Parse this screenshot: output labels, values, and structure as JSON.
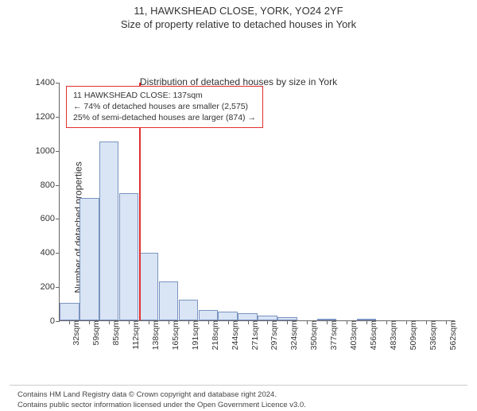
{
  "title_line1": "11, HAWKSHEAD CLOSE, YORK, YO24 2YF",
  "title_line2": "Size of property relative to detached houses in York",
  "chart": {
    "type": "histogram",
    "ylabel": "Number of detached properties",
    "xlabel": "Distribution of detached houses by size in York",
    "ylim_max": 1400,
    "ytick_step": 200,
    "yticks": [
      0,
      200,
      400,
      600,
      800,
      1000,
      1200,
      1400
    ],
    "bar_color": "#d9e4f5",
    "bar_border_color": "#7a94c0",
    "background_color": "#ffffff",
    "vline_color": "#e03030",
    "vline_width": 2,
    "vline_at_category_index": 4,
    "annotation": {
      "border_color": "#e03030",
      "border_width": 1.5,
      "lines": [
        "11 HAWKSHEAD CLOSE: 137sqm",
        "← 74% of detached houses are smaller (2,575)",
        "25% of semi-detached houses are larger (874) →"
      ]
    },
    "categories": [
      "32sqm",
      "59sqm",
      "85sqm",
      "112sqm",
      "138sqm",
      "165sqm",
      "191sqm",
      "218sqm",
      "244sqm",
      "271sqm",
      "297sqm",
      "324sqm",
      "350sqm",
      "377sqm",
      "403sqm",
      "456sqm",
      "483sqm",
      "509sqm",
      "536sqm",
      "562sqm"
    ],
    "values": [
      105,
      720,
      1050,
      745,
      395,
      230,
      120,
      60,
      50,
      40,
      30,
      20,
      0,
      10,
      0,
      10,
      0,
      0,
      0,
      0
    ]
  },
  "footer": {
    "line1": "Contains HM Land Registry data © Crown copyright and database right 2024.",
    "line2": "Contains public sector information licensed under the Open Government Licence v3.0."
  }
}
